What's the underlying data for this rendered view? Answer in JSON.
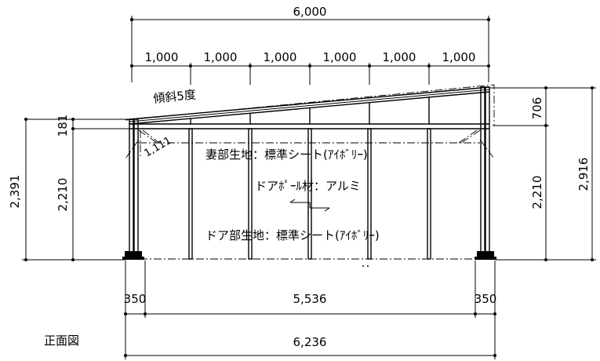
{
  "drawing": {
    "view_title": "正面図",
    "slope_label": "傾斜5度",
    "rafter_label": "1,111",
    "notes": {
      "gable_fabric": "妻部生地：標準シート(ｱｲﾎﾞﾘｰ)",
      "door_pole": "ドアﾎﾟｰﾙ材：アルミ",
      "door_fabric": "ドア部生地：標準シート(ｱｲﾎﾞﾘｰ)"
    },
    "dimensions": {
      "top_total": "6,000",
      "top_segments": [
        "1,000",
        "1,000",
        "1,000",
        "1,000",
        "1,000",
        "1,000"
      ],
      "left_total": "2,391",
      "left_eave": "181",
      "left_wall": "2,210",
      "right_roof": "706",
      "right_wall": "2,210",
      "right_total": "2,916",
      "bottom_left": "350",
      "bottom_middle": "5,536",
      "bottom_right": "350",
      "bottom_total": "6,236"
    }
  }
}
